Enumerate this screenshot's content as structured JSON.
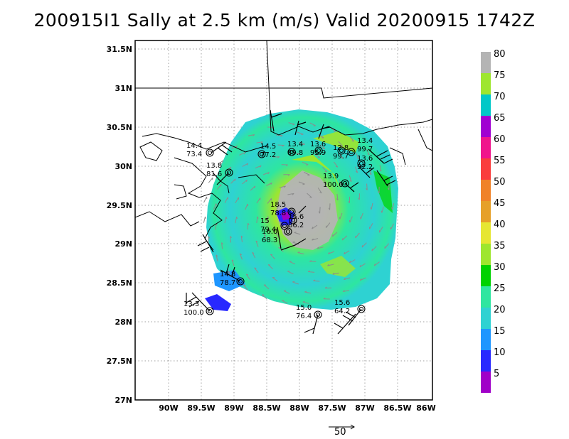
{
  "title": "200915I1 Sally at 2.5 km (m/s) Valid 20200915 1742Z",
  "lat_labels": [
    "31.5N",
    "31N",
    "30.5N",
    "30N",
    "29.5N",
    "29N",
    "28.5N",
    "28N",
    "27.5N",
    "27N"
  ],
  "lon_labels": [
    "90W",
    "89.5W",
    "89W",
    "88.5W",
    "88W",
    "87.5W",
    "87W",
    "86.5W",
    "86W"
  ],
  "colorbar_levels": [
    "5",
    "10",
    "15",
    "20",
    "25",
    "30",
    "35",
    "40",
    "45",
    "50",
    "55",
    "60",
    "65",
    "70",
    "75",
    "80"
  ],
  "colorbar_colors": [
    "#a000c8",
    "#2828ff",
    "#1e96ff",
    "#2ed2d2",
    "#2ee6a0",
    "#00d200",
    "#9ee62e",
    "#e6e632",
    "#e6a028",
    "#f08228",
    "#fa3c3c",
    "#f0148c",
    "#a000d2",
    "#00c8c8",
    "#9ee62e",
    "#b4b4b4"
  ],
  "reference_vector_label": "50",
  "stations": [
    {
      "id": "s1",
      "top": "14.4",
      "bottom": "73.4"
    },
    {
      "id": "s2",
      "top": "13.8",
      "bottom": "81.6"
    },
    {
      "id": "s3",
      "top": "14.5",
      "bottom": "77.2"
    },
    {
      "id": "s4",
      "top": "13.4",
      "bottom": "89.8"
    },
    {
      "id": "s5",
      "top": "13.6",
      "bottom": "95.9"
    },
    {
      "id": "s6",
      "top": "12.8",
      "bottom": "99.7"
    },
    {
      "id": "s7",
      "top": "13.4",
      "bottom": "99.7"
    },
    {
      "id": "s8",
      "top": "13.6",
      "bottom": "92.2"
    },
    {
      "id": "s9",
      "top": "13.9",
      "bottom": "100.0"
    },
    {
      "id": "s10",
      "top": "18.5",
      "bottom": "78.8"
    },
    {
      "id": "s11",
      "top": "15.6",
      "bottom": "86.2"
    },
    {
      "id": "s12",
      "top": "15",
      "bottom": "79.4"
    },
    {
      "id": "s13",
      "top": "16.0",
      "bottom": "68.3"
    },
    {
      "id": "s14",
      "top": "14.8",
      "bottom": "78.7"
    },
    {
      "id": "s15",
      "top": "13.3",
      "bottom": "100.0"
    },
    {
      "id": "s16",
      "top": "15.0",
      "bottom": "76.4"
    },
    {
      "id": "s17",
      "top": "15.6",
      "bottom": "64.2"
    }
  ]
}
